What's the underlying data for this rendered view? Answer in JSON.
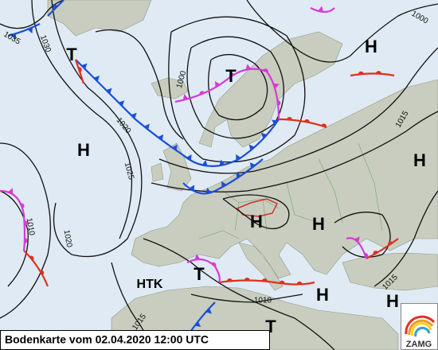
{
  "map": {
    "pressure_centers": [
      "T",
      "T",
      "H",
      "H",
      "H",
      "H",
      "T",
      "H",
      "H",
      "T",
      "H"
    ],
    "low_pressure_complex": "HTK",
    "isobar_labels": [
      "1035",
      "1030",
      "1025",
      "1020",
      "1000",
      "1020",
      "1015",
      "1015",
      "1010",
      "1015",
      "1000",
      "1010"
    ],
    "caption": "Bodenkarte vom 02.04.2020 12:00 UTC",
    "logo": "ZAMG"
  }
}
